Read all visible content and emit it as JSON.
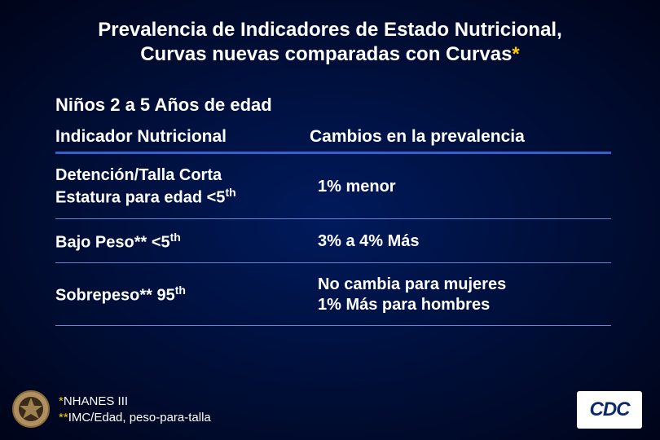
{
  "title_line1": "Prevalencia de Indicadores de Estado Nutricional,",
  "title_line2_a": "Curvas nuevas comparadas con Curvas",
  "title_line2_star": "*",
  "subtitle": "Niños 2 a 5 Años de edad",
  "headers": {
    "col1": "Indicador Nutricional",
    "col2": "Cambios en la prevalencia"
  },
  "rows": [
    {
      "indicator_html": "Detención/Talla Corta<br>Estatura para edad &lt;5<sup>th</sup>",
      "change_html": "1% menor"
    },
    {
      "indicator_html": "Bajo Peso** &lt;5<sup>th</sup>",
      "change_html": "3% a 4% Más"
    },
    {
      "indicator_html": "Sobrepeso** 95<sup>th</sup>",
      "change_html": "No cambia para mujeres<br>1% Más para hombres"
    }
  ],
  "footnotes": {
    "line1_star": "*",
    "line1_text": "NHANES III",
    "line2_star": "**",
    "line2_text": "IMC/Edad, peso-para-talla"
  },
  "cdc_label": "CDC",
  "colors": {
    "accent_star": "#ffcc00",
    "header_rule": "#3a5fcc",
    "row_rule": "#6a84d4",
    "text": "#ffffff",
    "cdc_bg": "#ffffff",
    "cdc_text": "#0a2a6a"
  }
}
